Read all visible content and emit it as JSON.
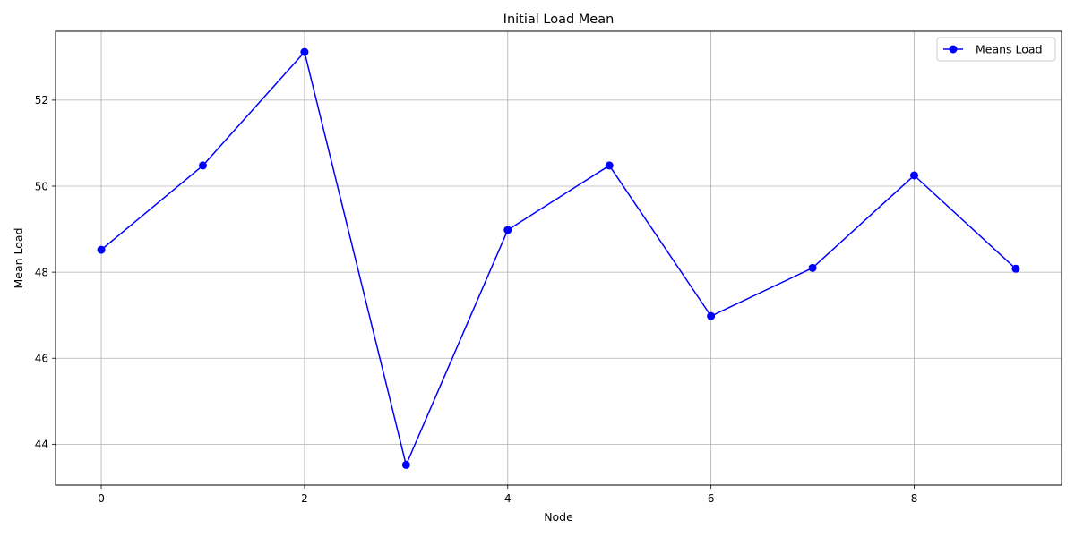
{
  "chart_data": {
    "type": "line",
    "title": "Initial Load Mean",
    "xlabel": "Node",
    "ylabel": "Mean Load",
    "xlim": [
      -0.45,
      9.45
    ],
    "ylim": [
      43.05,
      53.6
    ],
    "xticks": [
      0,
      2,
      4,
      6,
      8
    ],
    "yticks": [
      44,
      46,
      48,
      50,
      52
    ],
    "grid": true,
    "legend_position": "top-right",
    "series": [
      {
        "name": "Means Load",
        "color": "#0000ff",
        "marker": "circle",
        "x": [
          0,
          1,
          2,
          3,
          4,
          5,
          6,
          7,
          8,
          9
        ],
        "y": [
          48.52,
          50.48,
          53.12,
          43.52,
          48.98,
          50.48,
          46.98,
          48.1,
          50.25,
          48.08
        ]
      }
    ]
  }
}
